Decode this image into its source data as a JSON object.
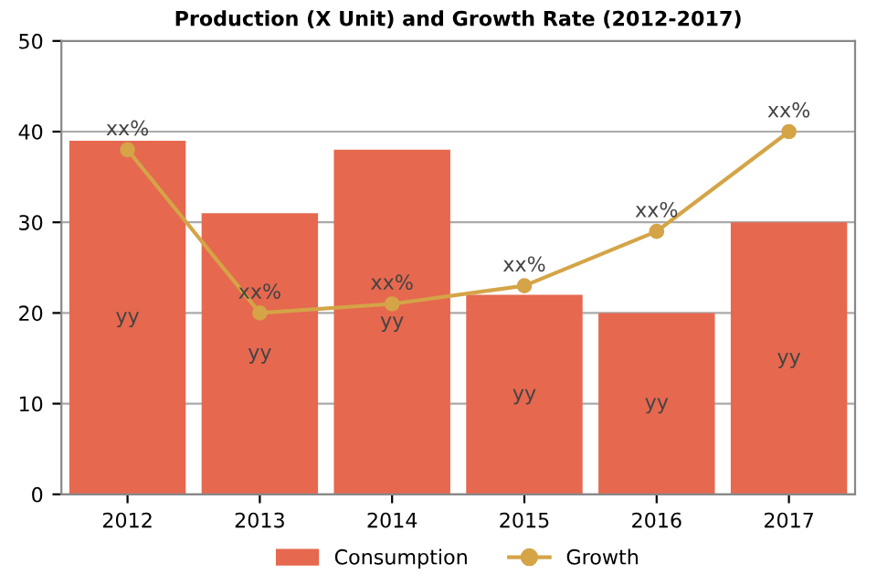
{
  "chart_data": {
    "type": "bar",
    "title": "Production (X Unit) and Growth Rate (2012-2017)",
    "categories": [
      "2012",
      "2013",
      "2014",
      "2015",
      "2016",
      "2017"
    ],
    "series": [
      {
        "name": "Consumption",
        "color": "#e6684f",
        "values": [
          39,
          31,
          38,
          22,
          20,
          30
        ],
        "value_labels": [
          "yy",
          "yy",
          "yy",
          "yy",
          "yy",
          "yy"
        ]
      },
      {
        "name": "Growth",
        "type": "line",
        "color": "#d4a447",
        "values": [
          38,
          20,
          21,
          23,
          29,
          40
        ],
        "value_labels": [
          "xx%",
          "xx%",
          "xx%",
          "xx%",
          "xx%",
          "xx%"
        ],
        "marker": "circle"
      }
    ],
    "ylim": [
      0,
      50
    ],
    "yticks": [
      0,
      10,
      20,
      30,
      40,
      50
    ],
    "grid": "y",
    "legend": "bottom"
  }
}
